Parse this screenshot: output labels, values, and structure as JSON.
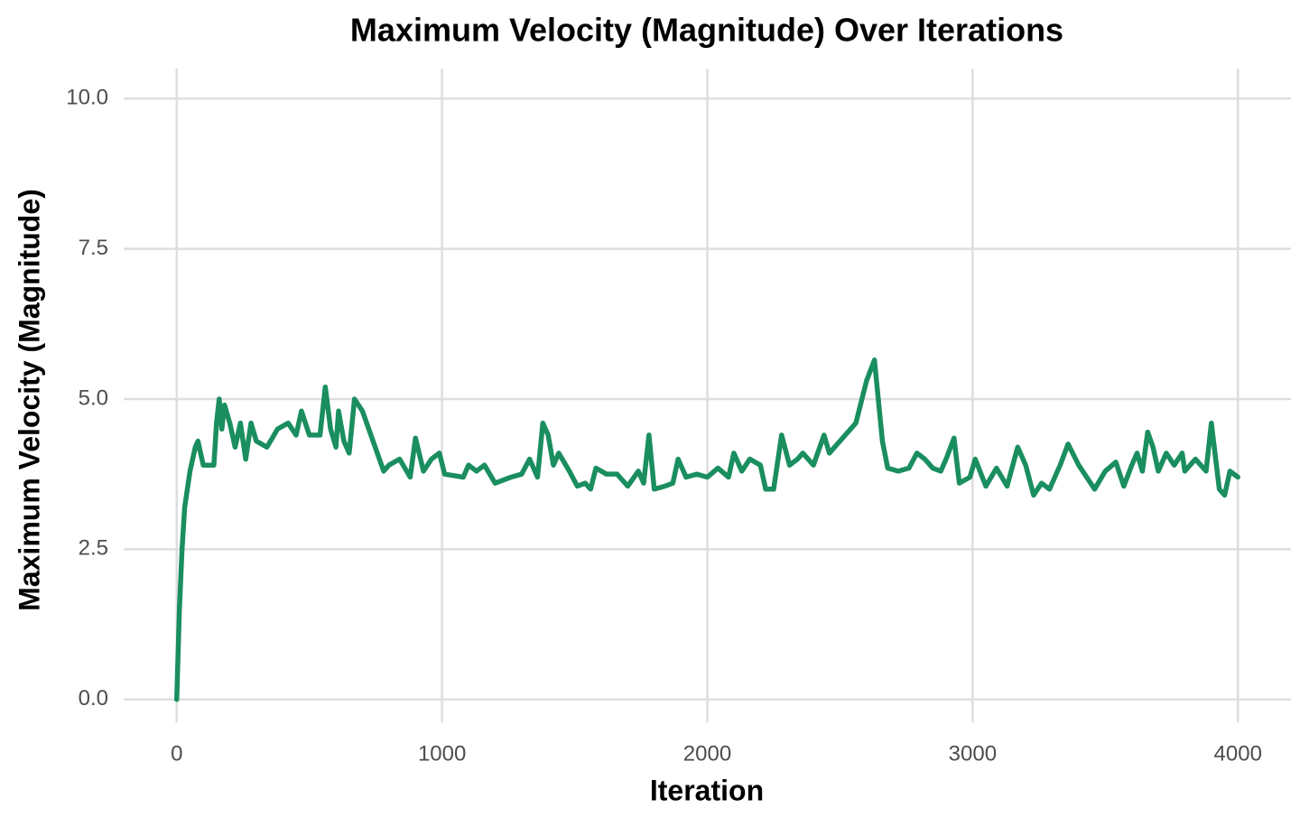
{
  "chart_data": {
    "type": "line",
    "title": "Maximum Velocity (Magnitude) Over Iterations",
    "x_label": "Iteration",
    "y_label": "Maximum Velocity (Magnitude)",
    "x": [
      0,
      10,
      20,
      30,
      50,
      70,
      80,
      100,
      140,
      150,
      160,
      170,
      180,
      200,
      220,
      240,
      260,
      280,
      300,
      340,
      380,
      420,
      450,
      470,
      500,
      540,
      560,
      580,
      600,
      610,
      630,
      650,
      670,
      700,
      740,
      780,
      800,
      840,
      880,
      900,
      930,
      960,
      990,
      1010,
      1080,
      1100,
      1130,
      1160,
      1200,
      1260,
      1300,
      1330,
      1360,
      1380,
      1400,
      1420,
      1440,
      1480,
      1510,
      1540,
      1560,
      1580,
      1620,
      1660,
      1700,
      1740,
      1760,
      1780,
      1800,
      1840,
      1870,
      1890,
      1920,
      1960,
      2000,
      2040,
      2080,
      2100,
      2130,
      2160,
      2200,
      2220,
      2250,
      2280,
      2310,
      2340,
      2360,
      2400,
      2440,
      2460,
      2500,
      2560,
      2600,
      2630,
      2660,
      2680,
      2720,
      2760,
      2790,
      2820,
      2850,
      2880,
      2900,
      2930,
      2950,
      2990,
      3010,
      3050,
      3090,
      3130,
      3170,
      3200,
      3230,
      3260,
      3290,
      3330,
      3360,
      3400,
      3430,
      3460,
      3500,
      3540,
      3570,
      3600,
      3620,
      3640,
      3660,
      3680,
      3700,
      3730,
      3760,
      3790,
      3800,
      3840,
      3880,
      3900,
      3930,
      3950,
      3970,
      4000
    ],
    "series": [
      {
        "name": "Maximum Velocity",
        "color": "#1a8e5f",
        "values": [
          0,
          1.5,
          2.5,
          3.2,
          3.8,
          4.2,
          4.3,
          3.9,
          3.9,
          4.6,
          5.0,
          4.5,
          4.9,
          4.6,
          4.2,
          4.6,
          4.0,
          4.6,
          4.3,
          4.2,
          4.5,
          4.6,
          4.4,
          4.8,
          4.4,
          4.4,
          5.2,
          4.5,
          4.2,
          4.8,
          4.3,
          4.1,
          5.0,
          4.8,
          4.3,
          3.8,
          3.9,
          4.0,
          3.7,
          4.35,
          3.8,
          4.0,
          4.1,
          3.75,
          3.7,
          3.9,
          3.8,
          3.9,
          3.6,
          3.7,
          3.75,
          4.0,
          3.7,
          4.6,
          4.4,
          3.9,
          4.1,
          3.8,
          3.55,
          3.6,
          3.5,
          3.85,
          3.75,
          3.75,
          3.55,
          3.8,
          3.6,
          4.4,
          3.5,
          3.55,
          3.6,
          4.0,
          3.7,
          3.75,
          3.7,
          3.85,
          3.7,
          4.1,
          3.8,
          4.0,
          3.9,
          3.5,
          3.5,
          4.4,
          3.9,
          4.0,
          4.1,
          3.9,
          4.4,
          4.1,
          4.3,
          4.6,
          5.3,
          5.65,
          4.3,
          3.85,
          3.8,
          3.85,
          4.1,
          4.0,
          3.85,
          3.8,
          4.0,
          4.35,
          3.6,
          3.7,
          4.0,
          3.55,
          3.85,
          3.55,
          4.2,
          3.9,
          3.4,
          3.6,
          3.5,
          3.9,
          4.25,
          3.9,
          3.7,
          3.5,
          3.8,
          3.95,
          3.55,
          3.9,
          4.1,
          3.8,
          4.45,
          4.2,
          3.8,
          4.1,
          3.9,
          4.1,
          3.8,
          4.0,
          3.8,
          4.6,
          3.5,
          3.4,
          3.8,
          3.7
        ]
      }
    ],
    "xlim": [
      -200,
      4200
    ],
    "xticks": [
      0,
      1000,
      2000,
      3000,
      4000
    ],
    "ylim": [
      -0.38,
      10.5
    ],
    "yticks": [
      {
        "value": 0,
        "label": "0.0"
      },
      {
        "value": 2.5,
        "label": "2.5"
      },
      {
        "value": 5,
        "label": "5.0"
      },
      {
        "value": 7.5,
        "label": "7.5"
      },
      {
        "value": 10,
        "label": "10.0"
      }
    ],
    "grid": true
  }
}
